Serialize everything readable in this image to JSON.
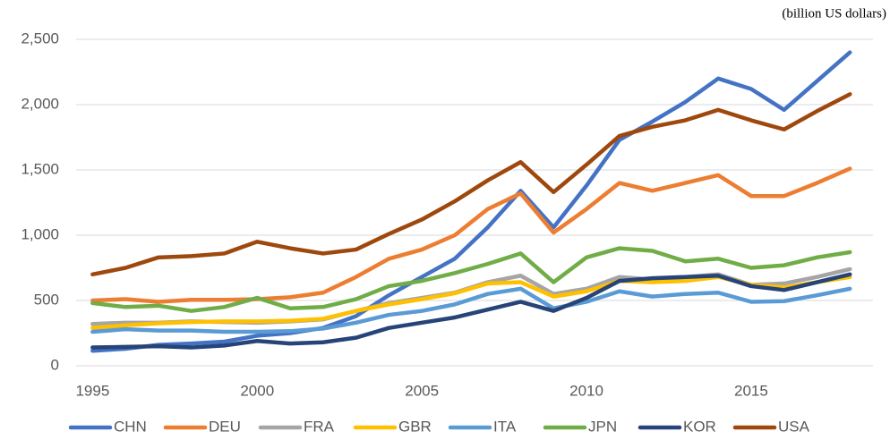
{
  "chart_data": {
    "type": "line",
    "annotation": "(billion US dollars)",
    "x": [
      1995,
      1996,
      1997,
      1998,
      1999,
      2000,
      2001,
      2002,
      2003,
      2004,
      2005,
      2006,
      2007,
      2008,
      2009,
      2010,
      2011,
      2012,
      2013,
      2014,
      2015,
      2016,
      2017,
      2018
    ],
    "xlim": [
      1994.5,
      2018.7
    ],
    "xticks": [
      1995,
      2000,
      2005,
      2010,
      2015
    ],
    "ylim": [
      0,
      2500
    ],
    "yticks": [
      0,
      500,
      {
        "value": 1000,
        "label": "1,000"
      },
      {
        "value": 1500,
        "label": "1,500"
      },
      {
        "value": 2000,
        "label": "2,000"
      },
      {
        "value": 2500,
        "label": "2,500"
      }
    ],
    "grid": true,
    "legend": "bottom",
    "series": [
      {
        "name": "CHN",
        "color": "#4472c4",
        "values": [
          115,
          130,
          160,
          170,
          185,
          230,
          250,
          290,
          380,
          540,
          680,
          820,
          1060,
          1340,
          1060,
          1380,
          1730,
          1870,
          2020,
          2200,
          2120,
          1960,
          2180,
          2400
        ]
      },
      {
        "name": "DEU",
        "color": "#ed7d31",
        "values": [
          500,
          510,
          490,
          505,
          505,
          510,
          525,
          560,
          680,
          820,
          890,
          1000,
          1200,
          1320,
          1020,
          1200,
          1400,
          1340,
          1400,
          1460,
          1300,
          1300,
          1400,
          1510
        ]
      },
      {
        "name": "FRA",
        "color": "#a5a5a5",
        "values": [
          320,
          330,
          330,
          340,
          335,
          330,
          340,
          355,
          420,
          480,
          520,
          560,
          640,
          690,
          550,
          590,
          680,
          660,
          680,
          700,
          620,
          630,
          680,
          740
        ]
      },
      {
        "name": "GBR",
        "color": "#ffc000",
        "values": [
          290,
          310,
          325,
          335,
          340,
          340,
          345,
          360,
          420,
          470,
          510,
          555,
          630,
          640,
          530,
          570,
          650,
          640,
          650,
          680,
          620,
          600,
          640,
          680
        ]
      },
      {
        "name": "ITA",
        "color": "#5b9bd5",
        "values": [
          260,
          280,
          270,
          270,
          260,
          260,
          265,
          285,
          330,
          390,
          420,
          470,
          550,
          590,
          440,
          490,
          570,
          530,
          550,
          560,
          490,
          495,
          540,
          590
        ]
      },
      {
        "name": "JPN",
        "color": "#70ad47",
        "values": [
          480,
          450,
          460,
          420,
          450,
          520,
          440,
          450,
          510,
          610,
          650,
          710,
          780,
          860,
          640,
          830,
          900,
          880,
          800,
          820,
          750,
          770,
          830,
          870
        ]
      },
      {
        "name": "KOR",
        "color": "#264478",
        "values": [
          140,
          145,
          150,
          140,
          155,
          190,
          170,
          180,
          215,
          290,
          330,
          370,
          430,
          490,
          420,
          520,
          650,
          670,
          680,
          690,
          610,
          580,
          640,
          700
        ]
      },
      {
        "name": "USA",
        "color": "#9e480e",
        "values": [
          700,
          750,
          830,
          840,
          860,
          950,
          900,
          860,
          890,
          1010,
          1120,
          1260,
          1420,
          1560,
          1330,
          1540,
          1760,
          1830,
          1880,
          1960,
          1880,
          1810,
          1950,
          2080
        ]
      }
    ]
  }
}
